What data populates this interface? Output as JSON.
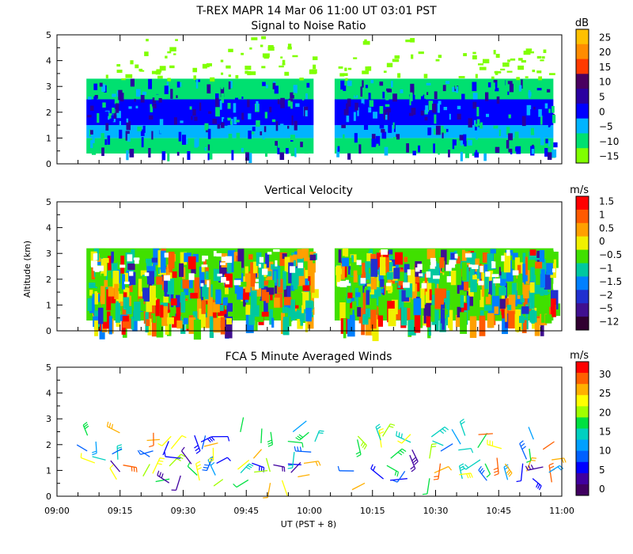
{
  "figure": {
    "title": "T-REX   MAPR 14 Mar 06   11:00 UT   03:01   PST",
    "ylabel": "Altitude (km)",
    "xlabel": "UT  (PST + 8)"
  },
  "colors": {
    "background": "#ffffff",
    "axis": "#000000"
  },
  "chart_data": [
    {
      "type": "heatmap",
      "title": "Signal to Noise Ratio",
      "xlabel": "UT  (PST + 8)",
      "ylabel": "Altitude (km)",
      "x_ticks": [
        "09:00",
        "09:15",
        "09:30",
        "09:45",
        "10:00",
        "10:15",
        "10:30",
        "10:45",
        "11:00"
      ],
      "x_range_minutes": [
        0,
        120
      ],
      "y_ticks": [
        "0",
        "1",
        "2",
        "3",
        "4",
        "5"
      ],
      "ylim": [
        0,
        5
      ],
      "data_gap_minutes": [
        61,
        66
      ],
      "colorbar": {
        "unit": "dB",
        "labels": [
          "25",
          "20",
          "15",
          "10",
          "5",
          "0",
          "−5",
          "−10",
          "−15"
        ],
        "colors": [
          "#ffc000",
          "#ff8c00",
          "#ff3a00",
          "#4a0060",
          "#2a00a0",
          "#0000ff",
          "#00b4ff",
          "#00e070",
          "#80ff00"
        ]
      },
      "layers": [
        {
          "km_from": 0.4,
          "km_to": 1.0,
          "db": -10
        },
        {
          "km_from": 1.0,
          "km_to": 1.5,
          "db": -5
        },
        {
          "km_from": 1.5,
          "km_to": 2.5,
          "db": 0
        },
        {
          "km_from": 2.5,
          "km_to": 3.3,
          "db": -10
        },
        {
          "km_from": 3.3,
          "km_to": 5.0,
          "db": -15
        }
      ]
    },
    {
      "type": "heatmap",
      "title": "Vertical Velocity",
      "xlabel": "UT  (PST + 8)",
      "ylabel": "Altitude (km)",
      "x_ticks": [
        "09:00",
        "09:15",
        "09:30",
        "09:45",
        "10:00",
        "10:15",
        "10:30",
        "10:45",
        "11:00"
      ],
      "x_range_minutes": [
        0,
        120
      ],
      "y_ticks": [
        "0",
        "1",
        "2",
        "3",
        "4",
        "5"
      ],
      "ylim": [
        0,
        5
      ],
      "data_gap_minutes": [
        61,
        66
      ],
      "colorbar": {
        "unit": "m/s",
        "labels": [
          "1.5",
          "1",
          "0.5",
          "0",
          "−0.5",
          "−1",
          "−1.5",
          "−2",
          "−5",
          "−12"
        ],
        "colors": [
          "#ff0000",
          "#ff5a00",
          "#ffa000",
          "#f0f000",
          "#40e000",
          "#00c8a0",
          "#0080ff",
          "#2030d0",
          "#401090",
          "#300030"
        ]
      },
      "data_top_km": 3.2
    },
    {
      "type": "scatter",
      "title": "FCA 5 Minute Averaged Winds",
      "xlabel": "UT  (PST + 8)",
      "ylabel": "Altitude (km)",
      "x_ticks": [
        "09:00",
        "09:15",
        "09:30",
        "09:45",
        "10:00",
        "10:15",
        "10:30",
        "10:45",
        "11:00"
      ],
      "x_range_minutes": [
        0,
        120
      ],
      "y_ticks": [
        "0",
        "1",
        "2",
        "3",
        "4",
        "5"
      ],
      "ylim": [
        0,
        5
      ],
      "colorbar": {
        "unit": "m/s",
        "labels": [
          "30",
          "25",
          "20",
          "15",
          "10",
          "5",
          "0"
        ],
        "colors": [
          "#ff0000",
          "#ff6000",
          "#ffb000",
          "#ffff00",
          "#a0ff00",
          "#00e040",
          "#00d0c0",
          "#00a0ff",
          "#0060ff",
          "#0000ff",
          "#4000a0",
          "#400060"
        ]
      },
      "barb_minutes": [
        8,
        15,
        22,
        28,
        33,
        38,
        45,
        50,
        55,
        60,
        72,
        78,
        84,
        90,
        96,
        101,
        106,
        112,
        117
      ],
      "barb_altitudes_km": [
        0.6,
        0.9,
        1.2,
        1.5,
        1.8,
        2.1,
        2.4
      ]
    }
  ]
}
